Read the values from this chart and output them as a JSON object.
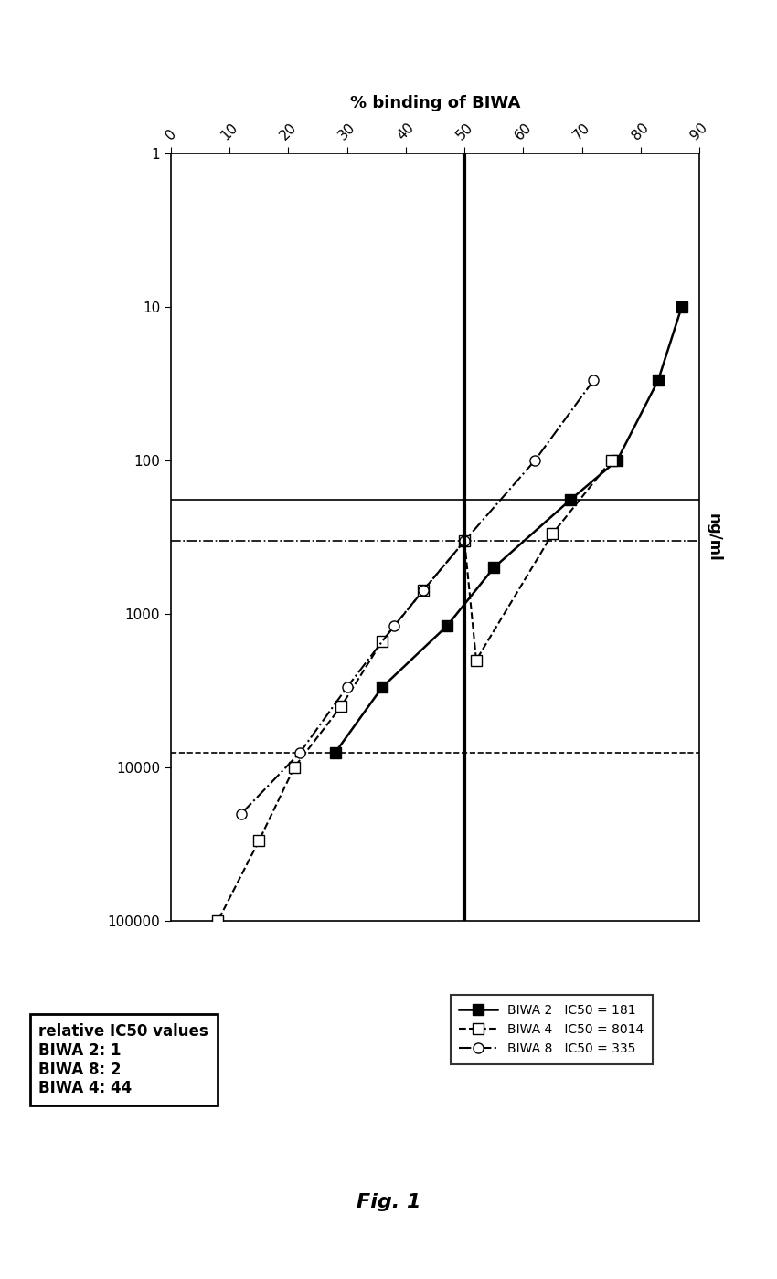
{
  "xlabel": "% binding of BIWA",
  "ylabel": "ng/ml",
  "xlim": [
    0,
    90
  ],
  "yticks_log": [
    1,
    10,
    100,
    1000,
    10000,
    100000
  ],
  "xticks": [
    0,
    10,
    20,
    30,
    40,
    50,
    60,
    70,
    80,
    90
  ],
  "biwa2_x": [
    87,
    83,
    76,
    68,
    55,
    47,
    36,
    28
  ],
  "biwa2_y": [
    10,
    30,
    100,
    181,
    500,
    1200,
    3000,
    8000
  ],
  "biwa4_x": [
    75,
    65,
    52,
    50,
    43,
    36,
    29,
    21,
    15,
    8
  ],
  "biwa4_y": [
    100,
    300,
    2000,
    335,
    700,
    1500,
    4000,
    10000,
    30000,
    100000
  ],
  "biwa8_x": [
    72,
    62,
    50,
    43,
    38,
    30,
    22,
    12
  ],
  "biwa8_y": [
    30,
    100,
    335,
    700,
    1200,
    3000,
    8000,
    20000
  ],
  "vline_x": 50,
  "hline_biwa2_y": 181,
  "hline_biwa8_y": 335,
  "hline_biwa4_y": 8014,
  "text_box1": "relative IC50 values\nBIWA 2: 1\nBIWA 8: 2\nBIWA 4: 44",
  "legend_label_biwa2": "BIWA 2   IC50 = 181",
  "legend_label_biwa4": "BIWA 4   IC50 = 8014",
  "legend_label_biwa8": "BIWA 8   IC50 = 335",
  "fig_title": "Fig. 1",
  "background_color": "#ffffff"
}
